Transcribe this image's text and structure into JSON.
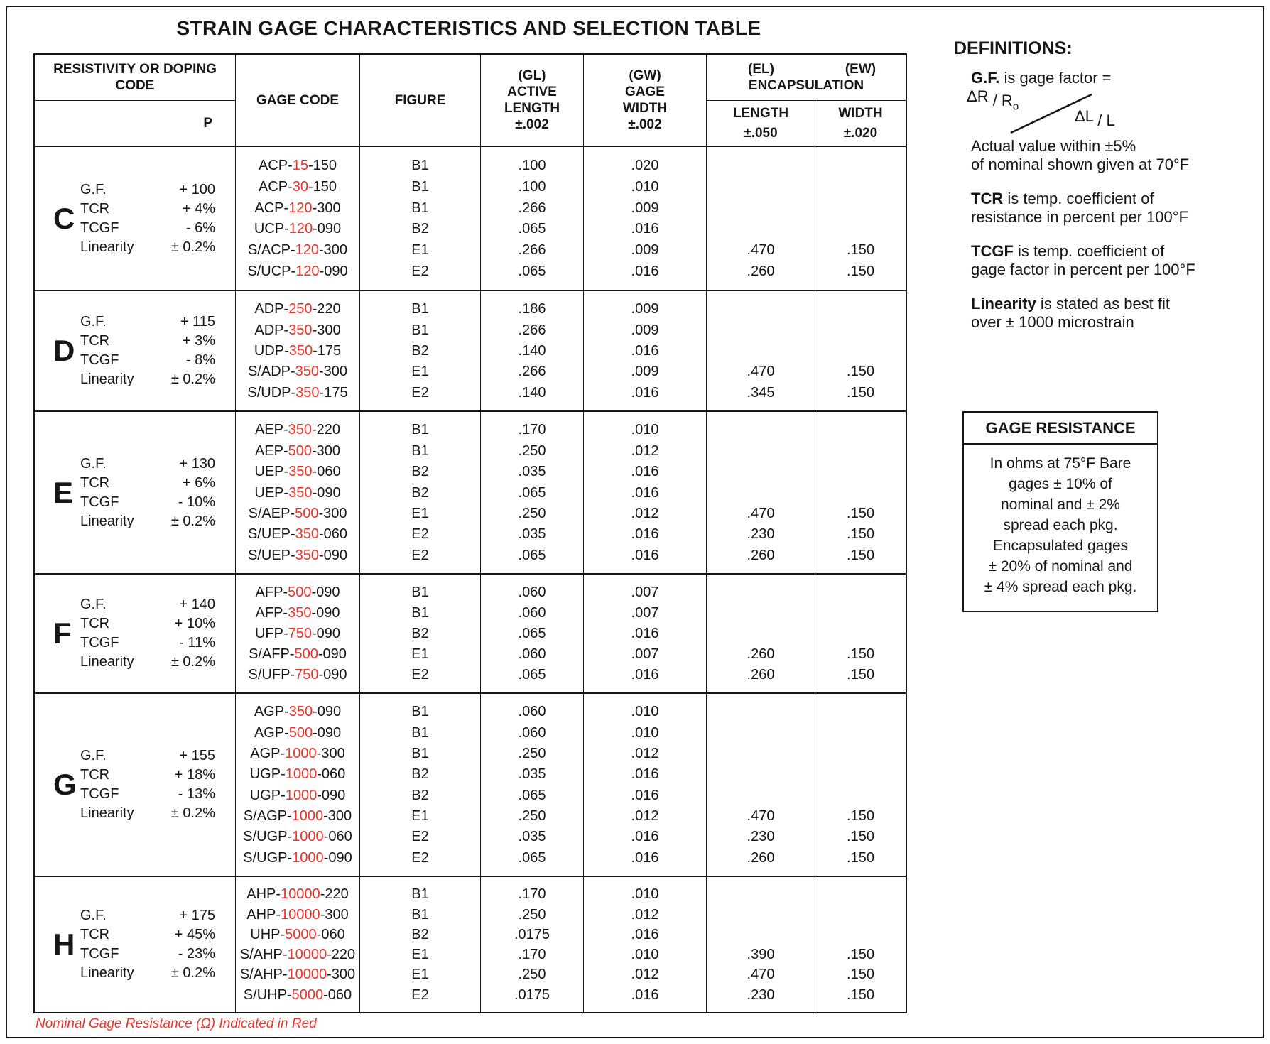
{
  "title": "STRAIN GAGE CHARACTERISTICS AND SELECTION TABLE",
  "colors": {
    "accent_red": "#e8342a",
    "ink": "#161616"
  },
  "table": {
    "header": {
      "col1_line1": "RESISTIVITY OR DOPING",
      "col1_line2": "CODE",
      "p": "P",
      "gage_code": "GAGE CODE",
      "figure": "FIGURE",
      "gl_lines": [
        "(GL)",
        "ACTIVE",
        "LENGTH",
        "±.002"
      ],
      "gw_lines": [
        "(GW)",
        "GAGE",
        "WIDTH",
        "±.002"
      ],
      "el": "(EL)",
      "ew": "(EW)",
      "encapsulation": "ENCAPSULATION",
      "enc_length": "LENGTH",
      "enc_length_tol": "±.050",
      "enc_width": "WIDTH",
      "enc_width_tol": "±.020"
    },
    "prop_labels": [
      "G.F.",
      "TCR",
      "TCGF",
      "Linearity"
    ],
    "groups": [
      {
        "letter": "C",
        "gf": "+ 100",
        "tcr": "+ 4%",
        "tcgf": "- 6%",
        "lin": "± 0.2%",
        "rows": [
          {
            "pre": "ACP-",
            "res": "15",
            "suf": "-150",
            "fig": "B1",
            "gl": ".100",
            "gw": ".020",
            "el": "",
            "ew": ""
          },
          {
            "pre": "ACP-",
            "res": "30",
            "suf": "-150",
            "fig": "B1",
            "gl": ".100",
            "gw": ".010",
            "el": "",
            "ew": ""
          },
          {
            "pre": "ACP-",
            "res": "120",
            "suf": "-300",
            "fig": "B1",
            "gl": ".266",
            "gw": ".009",
            "el": "",
            "ew": ""
          },
          {
            "pre": "UCP-",
            "res": "120",
            "suf": "-090",
            "fig": "B2",
            "gl": ".065",
            "gw": ".016",
            "el": "",
            "ew": ""
          },
          {
            "pre": "S/ACP-",
            "res": "120",
            "suf": "-300",
            "fig": "E1",
            "gl": ".266",
            "gw": ".009",
            "el": ".470",
            "ew": ".150"
          },
          {
            "pre": "S/UCP-",
            "res": "120",
            "suf": "-090",
            "fig": "E2",
            "gl": ".065",
            "gw": ".016",
            "el": ".260",
            "ew": ".150"
          }
        ]
      },
      {
        "letter": "D",
        "gf": "+ 115",
        "tcr": "+ 3%",
        "tcgf": "- 8%",
        "lin": "± 0.2%",
        "rows": [
          {
            "pre": "ADP-",
            "res": "250",
            "suf": "-220",
            "fig": "B1",
            "gl": ".186",
            "gw": ".009",
            "el": "",
            "ew": ""
          },
          {
            "pre": "ADP-",
            "res": "350",
            "suf": "-300",
            "fig": "B1",
            "gl": ".266",
            "gw": ".009",
            "el": "",
            "ew": ""
          },
          {
            "pre": "UDP-",
            "res": "350",
            "suf": "-175",
            "fig": "B2",
            "gl": ".140",
            "gw": ".016",
            "el": "",
            "ew": ""
          },
          {
            "pre": "S/ADP-",
            "res": "350",
            "suf": "-300",
            "fig": "E1",
            "gl": ".266",
            "gw": ".009",
            "el": ".470",
            "ew": ".150"
          },
          {
            "pre": "S/UDP-",
            "res": "350",
            "suf": "-175",
            "fig": "E2",
            "gl": ".140",
            "gw": ".016",
            "el": ".345",
            "ew": ".150"
          }
        ]
      },
      {
        "letter": "E",
        "gf": "+ 130",
        "tcr": "+ 6%",
        "tcgf": "- 10%",
        "lin": "± 0.2%",
        "rows": [
          {
            "pre": "AEP-",
            "res": "350",
            "suf": "-220",
            "fig": "B1",
            "gl": ".170",
            "gw": ".010",
            "el": "",
            "ew": ""
          },
          {
            "pre": "AEP-",
            "res": "500",
            "suf": "-300",
            "fig": "B1",
            "gl": ".250",
            "gw": ".012",
            "el": "",
            "ew": ""
          },
          {
            "pre": "UEP-",
            "res": "350",
            "suf": "-060",
            "fig": "B2",
            "gl": ".035",
            "gw": ".016",
            "el": "",
            "ew": ""
          },
          {
            "pre": "UEP-",
            "res": "350",
            "suf": "-090",
            "fig": "B2",
            "gl": ".065",
            "gw": ".016",
            "el": "",
            "ew": ""
          },
          {
            "pre": "S/AEP-",
            "res": "500",
            "suf": "-300",
            "fig": "E1",
            "gl": ".250",
            "gw": ".012",
            "el": ".470",
            "ew": ".150"
          },
          {
            "pre": "S/UEP-",
            "res": "350",
            "suf": "-060",
            "fig": "E2",
            "gl": ".035",
            "gw": ".016",
            "el": ".230",
            "ew": ".150"
          },
          {
            "pre": "S/UEP-",
            "res": "350",
            "suf": "-090",
            "fig": "E2",
            "gl": ".065",
            "gw": ".016",
            "el": ".260",
            "ew": ".150"
          }
        ]
      },
      {
        "letter": "F",
        "gf": "+ 140",
        "tcr": "+ 10%",
        "tcgf": "- 11%",
        "lin": "± 0.2%",
        "rows": [
          {
            "pre": "AFP-",
            "res": "500",
            "suf": "-090",
            "fig": "B1",
            "gl": ".060",
            "gw": ".007",
            "el": "",
            "ew": ""
          },
          {
            "pre": "AFP-",
            "res": "350",
            "suf": "-090",
            "fig": "B1",
            "gl": ".060",
            "gw": ".007",
            "el": "",
            "ew": ""
          },
          {
            "pre": "UFP-",
            "res": "750",
            "suf": "-090",
            "fig": "B2",
            "gl": ".065",
            "gw": ".016",
            "el": "",
            "ew": ""
          },
          {
            "pre": "S/AFP-",
            "res": "500",
            "suf": "-090",
            "fig": "E1",
            "gl": ".060",
            "gw": ".007",
            "el": ".260",
            "ew": ".150"
          },
          {
            "pre": "S/UFP-",
            "res": "750",
            "suf": "-090",
            "fig": "E2",
            "gl": ".065",
            "gw": ".016",
            "el": ".260",
            "ew": ".150"
          }
        ]
      },
      {
        "letter": "G",
        "gf": "+ 155",
        "tcr": "+ 18%",
        "tcgf": "- 13%",
        "lin": "± 0.2%",
        "rows": [
          {
            "pre": "AGP-",
            "res": "350",
            "suf": "-090",
            "fig": "B1",
            "gl": ".060",
            "gw": ".010",
            "el": "",
            "ew": ""
          },
          {
            "pre": "AGP-",
            "res": "500",
            "suf": "-090",
            "fig": "B1",
            "gl": ".060",
            "gw": ".010",
            "el": "",
            "ew": ""
          },
          {
            "pre": "AGP-",
            "res": "1000",
            "suf": "-300",
            "fig": "B1",
            "gl": ".250",
            "gw": ".012",
            "el": "",
            "ew": ""
          },
          {
            "pre": "UGP-",
            "res": "1000",
            "suf": "-060",
            "fig": "B2",
            "gl": ".035",
            "gw": ".016",
            "el": "",
            "ew": ""
          },
          {
            "pre": "UGP-",
            "res": "1000",
            "suf": "-090",
            "fig": "B2",
            "gl": ".065",
            "gw": ".016",
            "el": "",
            "ew": ""
          },
          {
            "pre": "S/AGP-",
            "res": "1000",
            "suf": "-300",
            "fig": "E1",
            "gl": ".250",
            "gw": ".012",
            "el": ".470",
            "ew": ".150"
          },
          {
            "pre": "S/UGP-",
            "res": "1000",
            "suf": "-060",
            "fig": "E2",
            "gl": ".035",
            "gw": ".016",
            "el": ".230",
            "ew": ".150"
          },
          {
            "pre": "S/UGP-",
            "res": "1000",
            "suf": "-090",
            "fig": "E2",
            "gl": ".065",
            "gw": ".016",
            "el": ".260",
            "ew": ".150"
          }
        ]
      },
      {
        "letter": "H",
        "gf": "+ 175",
        "tcr": "+ 45%",
        "tcgf": "- 23%",
        "lin": "± 0.2%",
        "rows": [
          {
            "pre": "AHP-",
            "res": "10000",
            "suf": "-220",
            "fig": "B1",
            "gl": ".170",
            "gw": ".010",
            "el": "",
            "ew": ""
          },
          {
            "pre": "AHP-",
            "res": "10000",
            "suf": "-300",
            "fig": "B1",
            "gl": ".250",
            "gw": ".012",
            "el": "",
            "ew": ""
          },
          {
            "pre": "UHP-",
            "res": "5000",
            "suf": "-060",
            "fig": "B2",
            "gl": ".0175",
            "gw": ".016",
            "el": "",
            "ew": ""
          },
          {
            "pre": "S/AHP-",
            "res": "10000",
            "suf": "-220",
            "fig": "E1",
            "gl": ".170",
            "gw": ".010",
            "el": ".390",
            "ew": ".150"
          },
          {
            "pre": "S/AHP-",
            "res": "10000",
            "suf": "-300",
            "fig": "E1",
            "gl": ".250",
            "gw": ".012",
            "el": ".470",
            "ew": ".150"
          },
          {
            "pre": "S/UHP-",
            "res": "5000",
            "suf": "-060",
            "fig": "E2",
            "gl": ".0175",
            "gw": ".016",
            "el": ".230",
            "ew": ".150"
          }
        ]
      }
    ],
    "footnote": "Nominal Gage Resistance (Ω) Indicated in Red"
  },
  "definitions": {
    "heading": "DEFINITIONS:",
    "gf": {
      "term": "G.F.",
      "rest": " is gage factor =",
      "num_a": "ΔR",
      "num_b": " / R",
      "num_sub": "o",
      "den_a": "ΔL",
      "den_b": " / L",
      "note_line1": "Actual value within ±5%",
      "note_line2": "of nominal shown given at 70°F"
    },
    "tcr": {
      "term": "TCR",
      "line1_rest": " is temp. coefficient of",
      "line2": "resistance in percent per 100°F"
    },
    "tcgf": {
      "term": "TCGF",
      "line1_rest": " is temp. coefficient of",
      "line2": "gage factor in percent per 100°F"
    },
    "linearity": {
      "term": "Linearity",
      "line1_rest": " is stated as best fit",
      "line2": "over ± 1000 microstrain"
    }
  },
  "gage_resistance": {
    "title": "GAGE RESISTANCE",
    "lines": [
      "In ohms at 75°F Bare",
      "gages ± 10% of",
      "nominal and ± 2%",
      "spread each pkg.",
      "Encapsulated gages",
      "± 20% of nominal and",
      "± 4% spread each pkg."
    ]
  }
}
